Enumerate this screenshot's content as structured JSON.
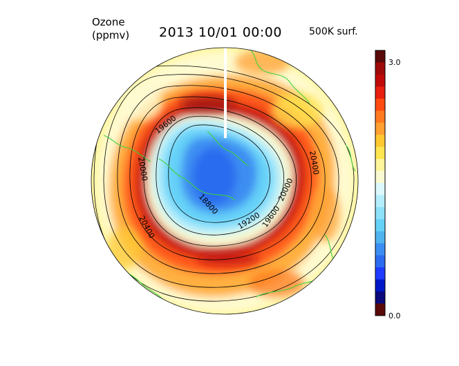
{
  "header": {
    "variable": "Ozone",
    "units": "(ppmv)",
    "datetime": "2013 10/01 00:00",
    "surface": "500K surf."
  },
  "colorbar": {
    "max_label": "3.0",
    "min_label": "0.0",
    "min": 0.0,
    "max": 3.0,
    "colors": [
      "#5a0a0a",
      "#0a0a7a",
      "#0018c8",
      "#1e3cff",
      "#2c6cf0",
      "#3c8ef2",
      "#50b4f0",
      "#66d2f8",
      "#8ee2fa",
      "#b4eefc",
      "#dcf8fc",
      "#fafad2",
      "#fff59a",
      "#ffe650",
      "#ffc830",
      "#ffa030",
      "#ff7a1e",
      "#ff4a10",
      "#e81e0e",
      "#c00a0a",
      "#9e0a0a",
      "#5a0a0a"
    ]
  },
  "contour_labels": [
    "19600",
    "20000",
    "20400",
    "20000",
    "20400",
    "19200",
    "18800",
    "19600",
    "20000"
  ],
  "colors": {
    "coastline": "#3cd23c",
    "contour": "#000000"
  }
}
